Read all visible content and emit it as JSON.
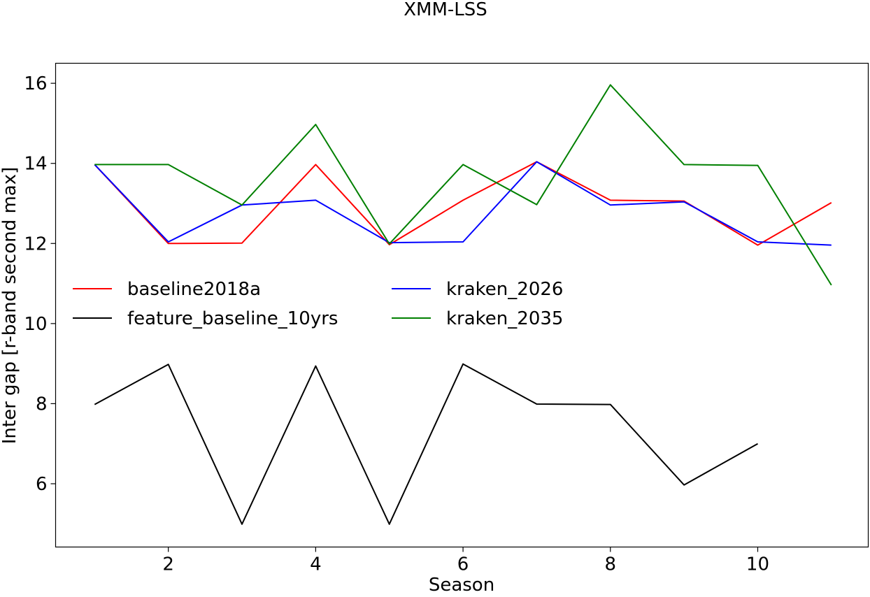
{
  "chart_data": {
    "type": "line",
    "title": "XMM-LSS",
    "xlabel": "Season",
    "ylabel": "Inter gap [r-band second max]",
    "xlim": [
      0.47,
      11.5
    ],
    "ylim": [
      4.42,
      16.5
    ],
    "xticks": [
      2,
      4,
      6,
      8,
      10
    ],
    "yticks": [
      6,
      8,
      10,
      12,
      14,
      16
    ],
    "grid": false,
    "legend_position": "center-left",
    "legend_columns": 2,
    "series": [
      {
        "name": "baseline2018a",
        "color": "#ff0000",
        "x": [
          1,
          2,
          3,
          4,
          5,
          6,
          7,
          8,
          9,
          10,
          11
        ],
        "y": [
          13.97,
          12.0,
          12.01,
          13.97,
          11.97,
          13.08,
          14.04,
          13.08,
          13.06,
          11.96,
          13.02
        ]
      },
      {
        "name": "feature_baseline_10yrs",
        "color": "#000000",
        "x": [
          1,
          2,
          3,
          4,
          5,
          6,
          7,
          8,
          9,
          10
        ],
        "y": [
          7.98,
          8.98,
          4.99,
          8.94,
          4.99,
          8.99,
          7.99,
          7.98,
          5.97,
          7.0
        ]
      },
      {
        "name": "kraken_2026",
        "color": "#0000ff",
        "x": [
          1,
          2,
          3,
          4,
          5,
          6,
          7,
          8,
          9,
          10,
          11
        ],
        "y": [
          13.97,
          12.04,
          12.96,
          13.08,
          12.02,
          12.04,
          14.04,
          12.96,
          13.04,
          12.04,
          11.96
        ]
      },
      {
        "name": "kraken_2035",
        "color": "#008000",
        "x": [
          1,
          2,
          3,
          4,
          5,
          6,
          7,
          8,
          9,
          10,
          11
        ],
        "y": [
          13.97,
          13.97,
          12.96,
          14.97,
          11.99,
          13.97,
          12.97,
          15.96,
          13.97,
          13.95,
          10.96
        ]
      }
    ]
  }
}
